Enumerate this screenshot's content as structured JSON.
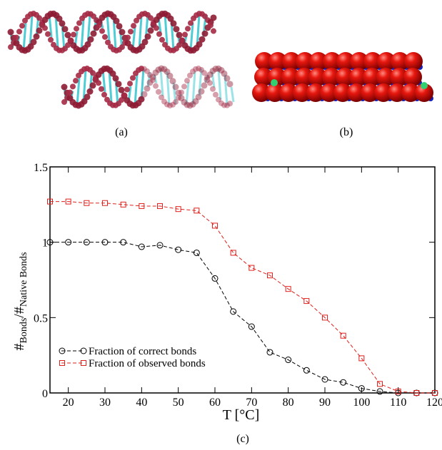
{
  "captions": [
    "(a)",
    "(b)",
    "(c)"
  ],
  "chart_data": {
    "type": "line",
    "xlabel": "T [°C]",
    "ylabel": [
      "#",
      "Bonds",
      "/#",
      "Native Bonds"
    ],
    "x": [
      15,
      20,
      25,
      30,
      35,
      40,
      45,
      50,
      55,
      60,
      65,
      70,
      75,
      80,
      85,
      90,
      95,
      100,
      105,
      110,
      115,
      120
    ],
    "series": [
      {
        "name": "Fraction of correct bonds",
        "color": "#000000",
        "marker": "circle",
        "values": [
          1.0,
          1.0,
          1.0,
          1.0,
          1.0,
          0.97,
          0.98,
          0.95,
          0.93,
          0.76,
          0.54,
          0.44,
          0.27,
          0.22,
          0.15,
          0.09,
          0.07,
          0.03,
          0.01,
          0.0,
          0.0,
          0.0
        ]
      },
      {
        "name": "Fraction of observed bonds",
        "color": "#e0201c",
        "marker": "square",
        "values": [
          1.27,
          1.27,
          1.26,
          1.26,
          1.25,
          1.24,
          1.24,
          1.22,
          1.21,
          1.11,
          0.93,
          0.83,
          0.78,
          0.69,
          0.61,
          0.5,
          0.38,
          0.23,
          0.06,
          0.01,
          0.0,
          0.0
        ]
      }
    ],
    "xlim": [
      15,
      120
    ],
    "xticks": [
      20,
      30,
      40,
      50,
      60,
      70,
      80,
      90,
      100,
      110,
      120
    ],
    "ylim": [
      0,
      1.5
    ],
    "yticks": [
      0,
      0.5,
      1,
      1.5
    ],
    "legend": "lower-left"
  }
}
